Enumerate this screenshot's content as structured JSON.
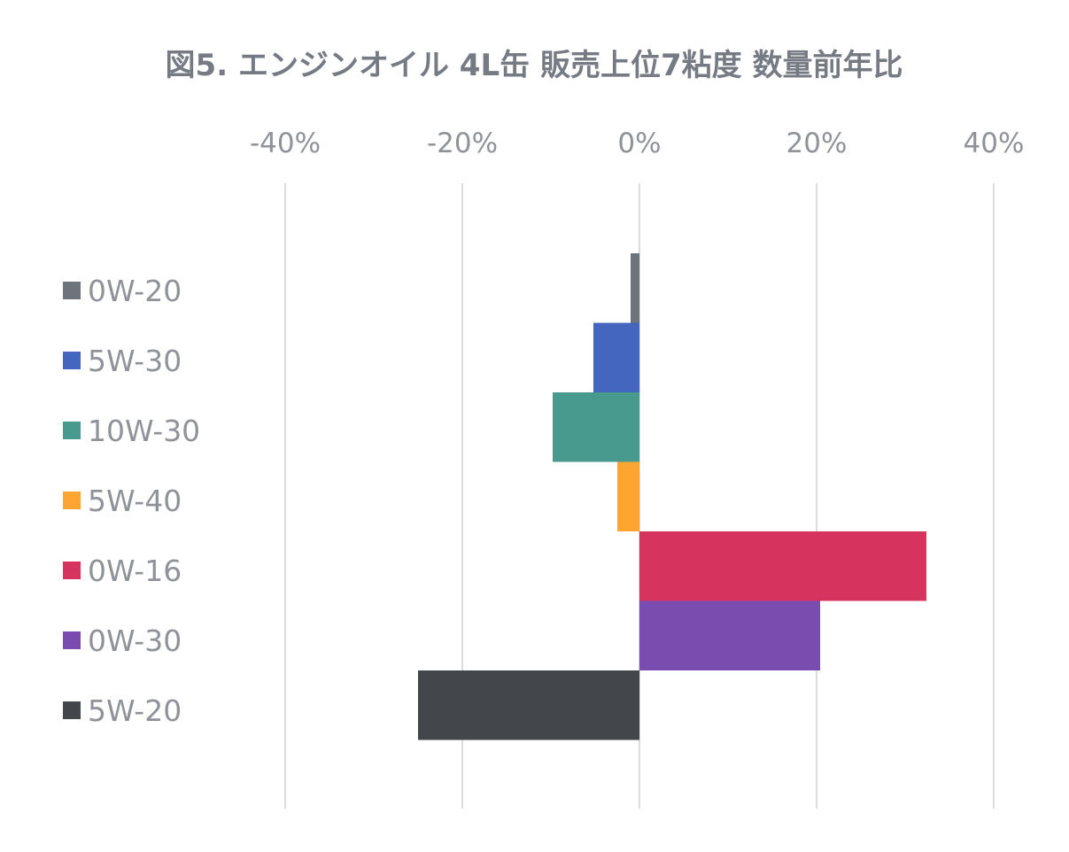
{
  "chart_data": {
    "type": "bar",
    "orientation": "horizontal",
    "title": "図5. エンジンオイル 4L缶 販売上位7粘度 数量前年比",
    "x_unit": "%",
    "xlim": [
      -40,
      40
    ],
    "xticks": [
      -40,
      -20,
      0,
      20,
      40
    ],
    "tick_labels": [
      "-40%",
      "-20%",
      "0%",
      "20%",
      "40%"
    ],
    "grid": true,
    "legend_position": "left",
    "series": [
      {
        "name": "0W-20",
        "value": -1.0,
        "color": "#6d747c"
      },
      {
        "name": "5W-30",
        "value": -5.2,
        "color": "#4466bf"
      },
      {
        "name": "10W-30",
        "value": -9.8,
        "color": "#489a8f"
      },
      {
        "name": "5W-40",
        "value": -2.5,
        "color": "#fea430"
      },
      {
        "name": "0W-16",
        "value": 32.4,
        "color": "#d6335e"
      },
      {
        "name": "0W-30",
        "value": 20.4,
        "color": "#7b4cb0"
      },
      {
        "name": "5W-20",
        "value": -25.0,
        "color": "#43474c"
      }
    ]
  }
}
